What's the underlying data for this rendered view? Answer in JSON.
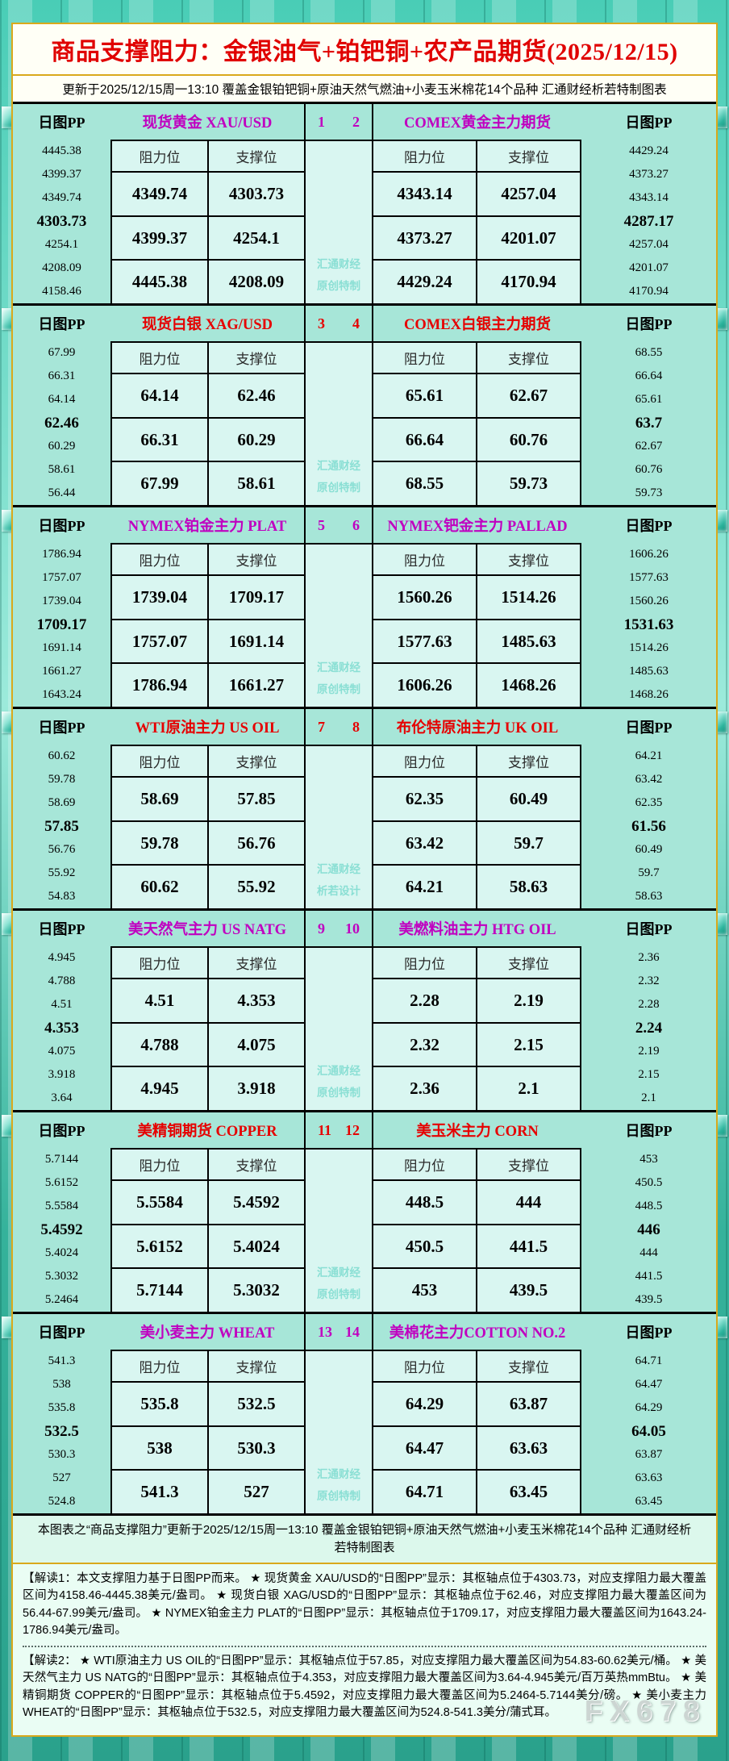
{
  "header": {
    "title": "商品支撑阻力：金银油气+铂钯铜+农产品期货(2025/12/15)",
    "subtitle": "更新于2025/12/15周一13:10  覆盖金银铂钯铜+原油天然气燃油+小麦玉米棉花14个品种  汇通财经析若特制图表"
  },
  "labels": {
    "pp_label": "日图PP",
    "resistance": "阻力位",
    "support": "支撑位"
  },
  "colors": {
    "magenta": "#c000c0",
    "red": "#e60000",
    "panel_bg": "#a7e6d8",
    "cell_bg": "#d9f6f1",
    "title_red": "#e00000",
    "gold_border": "#d9a91c",
    "watermark": "#8adfd4"
  },
  "panels": [
    {
      "accent": "#c000c0",
      "num_left": "1",
      "num_right": "2",
      "watermark": [
        "汇通财经",
        "原创特制"
      ],
      "left": {
        "title": "现货黄金 XAU/USD",
        "pp": [
          "4445.38",
          "4399.37",
          "4349.74",
          "4303.73",
          "4254.1",
          "4208.09",
          "4158.46"
        ],
        "rows": [
          [
            "4349.74",
            "4303.73"
          ],
          [
            "4399.37",
            "4254.1"
          ],
          [
            "4445.38",
            "4208.09"
          ]
        ]
      },
      "right": {
        "title": "COMEX黄金主力期货",
        "pp": [
          "4429.24",
          "4373.27",
          "4343.14",
          "4287.17",
          "4257.04",
          "4201.07",
          "4170.94"
        ],
        "rows": [
          [
            "4343.14",
            "4257.04"
          ],
          [
            "4373.27",
            "4201.07"
          ],
          [
            "4429.24",
            "4170.94"
          ]
        ]
      }
    },
    {
      "accent": "#e60000",
      "num_left": "3",
      "num_right": "4",
      "watermark": [
        "汇通财经",
        "原创特制"
      ],
      "left": {
        "title": "现货白银 XAG/USD",
        "pp": [
          "67.99",
          "66.31",
          "64.14",
          "62.46",
          "60.29",
          "58.61",
          "56.44"
        ],
        "rows": [
          [
            "64.14",
            "62.46"
          ],
          [
            "66.31",
            "60.29"
          ],
          [
            "67.99",
            "58.61"
          ]
        ]
      },
      "right": {
        "title": "COMEX白银主力期货",
        "pp": [
          "68.55",
          "66.64",
          "65.61",
          "63.7",
          "62.67",
          "60.76",
          "59.73"
        ],
        "rows": [
          [
            "65.61",
            "62.67"
          ],
          [
            "66.64",
            "60.76"
          ],
          [
            "68.55",
            "59.73"
          ]
        ]
      }
    },
    {
      "accent": "#c000c0",
      "num_left": "5",
      "num_right": "6",
      "watermark": [
        "汇通财经",
        "原创特制"
      ],
      "left": {
        "title": "NYMEX铂金主力 PLAT",
        "pp": [
          "1786.94",
          "1757.07",
          "1739.04",
          "1709.17",
          "1691.14",
          "1661.27",
          "1643.24"
        ],
        "rows": [
          [
            "1739.04",
            "1709.17"
          ],
          [
            "1757.07",
            "1691.14"
          ],
          [
            "1786.94",
            "1661.27"
          ]
        ]
      },
      "right": {
        "title": "NYMEX钯金主力 PALLAD",
        "pp": [
          "1606.26",
          "1577.63",
          "1560.26",
          "1531.63",
          "1514.26",
          "1485.63",
          "1468.26"
        ],
        "rows": [
          [
            "1560.26",
            "1514.26"
          ],
          [
            "1577.63",
            "1485.63"
          ],
          [
            "1606.26",
            "1468.26"
          ]
        ]
      }
    },
    {
      "accent": "#e60000",
      "num_left": "7",
      "num_right": "8",
      "watermark": [
        "汇通财经",
        "析若设计"
      ],
      "left": {
        "title": "WTI原油主力 US OIL",
        "pp": [
          "60.62",
          "59.78",
          "58.69",
          "57.85",
          "56.76",
          "55.92",
          "54.83"
        ],
        "rows": [
          [
            "58.69",
            "57.85"
          ],
          [
            "59.78",
            "56.76"
          ],
          [
            "60.62",
            "55.92"
          ]
        ]
      },
      "right": {
        "title": "布伦特原油主力 UK OIL",
        "pp": [
          "64.21",
          "63.42",
          "62.35",
          "61.56",
          "60.49",
          "59.7",
          "58.63"
        ],
        "rows": [
          [
            "62.35",
            "60.49"
          ],
          [
            "63.42",
            "59.7"
          ],
          [
            "64.21",
            "58.63"
          ]
        ]
      }
    },
    {
      "accent": "#c000c0",
      "num_left": "9",
      "num_right": "10",
      "watermark": [
        "汇通财经",
        "原创特制"
      ],
      "left": {
        "title": "美天然气主力 US NATG",
        "pp": [
          "4.945",
          "4.788",
          "4.51",
          "4.353",
          "4.075",
          "3.918",
          "3.64"
        ],
        "rows": [
          [
            "4.51",
            "4.353"
          ],
          [
            "4.788",
            "4.075"
          ],
          [
            "4.945",
            "3.918"
          ]
        ]
      },
      "right": {
        "title": "美燃料油主力 HTG OIL",
        "pp": [
          "2.36",
          "2.32",
          "2.28",
          "2.24",
          "2.19",
          "2.15",
          "2.1"
        ],
        "rows": [
          [
            "2.28",
            "2.19"
          ],
          [
            "2.32",
            "2.15"
          ],
          [
            "2.36",
            "2.1"
          ]
        ]
      }
    },
    {
      "accent": "#e60000",
      "num_left": "11",
      "num_right": "12",
      "watermark": [
        "汇通财经",
        "原创特制"
      ],
      "left": {
        "title": "美精铜期货 COPPER",
        "pp": [
          "5.7144",
          "5.6152",
          "5.5584",
          "5.4592",
          "5.4024",
          "5.3032",
          "5.2464"
        ],
        "rows": [
          [
            "5.5584",
            "5.4592"
          ],
          [
            "5.6152",
            "5.4024"
          ],
          [
            "5.7144",
            "5.3032"
          ]
        ]
      },
      "right": {
        "title": "美玉米主力 CORN",
        "pp": [
          "453",
          "450.5",
          "448.5",
          "446",
          "444",
          "441.5",
          "439.5"
        ],
        "rows": [
          [
            "448.5",
            "444"
          ],
          [
            "450.5",
            "441.5"
          ],
          [
            "453",
            "439.5"
          ]
        ]
      }
    },
    {
      "accent": "#c000c0",
      "num_left": "13",
      "num_right": "14",
      "watermark": [
        "汇通财经",
        "原创特制"
      ],
      "left": {
        "title": "美小麦主力 WHEAT",
        "pp": [
          "541.3",
          "538",
          "535.8",
          "532.5",
          "530.3",
          "527",
          "524.8"
        ],
        "rows": [
          [
            "535.8",
            "532.5"
          ],
          [
            "538",
            "530.3"
          ],
          [
            "541.3",
            "527"
          ]
        ]
      },
      "right": {
        "title": "美棉花主力COTTON NO.2",
        "pp": [
          "64.71",
          "64.47",
          "64.29",
          "64.05",
          "63.87",
          "63.63",
          "63.45"
        ],
        "rows": [
          [
            "64.29",
            "63.87"
          ],
          [
            "64.47",
            "63.63"
          ],
          [
            "64.71",
            "63.45"
          ]
        ]
      }
    }
  ],
  "footer": {
    "summary": "本图表之“商品支撑阻力”更新于2025/12/15周一13:10  覆盖金银铂钯铜+原油天然气燃油+小麦玉米棉花14个品种  汇通财经析若特制图表",
    "note1": "【解读1：本文支撑阻力基于日图PP而来。 ★ 现货黄金 XAU/USD的“日图PP”显示：其枢轴点位于4303.73，对应支撑阻力最大覆盖区间为4158.46-4445.38美元/盎司。 ★ 现货白银 XAG/USD的“日图PP”显示：其枢轴点位于62.46，对应支撑阻力最大覆盖区间为56.44-67.99美元/盎司。 ★ NYMEX铂金主力 PLAT的“日图PP”显示：其枢轴点位于1709.17，对应支撑阻力最大覆盖区间为1643.24-1786.94美元/盎司。",
    "note2": "【解读2： ★ WTI原油主力 US OIL的“日图PP”显示：其枢轴点位于57.85，对应支撑阻力最大覆盖区间为54.83-60.62美元/桶。 ★ 美天然气主力 US NATG的“日图PP”显示：其枢轴点位于4.353，对应支撑阻力最大覆盖区间为3.64-4.945美元/百万英热mmBtu。 ★ 美精铜期货 COPPER的“日图PP”显示：其枢轴点位于5.4592，对应支撑阻力最大覆盖区间为5.2464-5.7144美分/磅。 ★ 美小麦主力 WHEAT的“日图PP”显示：其枢轴点位于532.5，对应支撑阻力最大覆盖区间为524.8-541.3美分/蒲式耳。",
    "brand": "FX678"
  }
}
